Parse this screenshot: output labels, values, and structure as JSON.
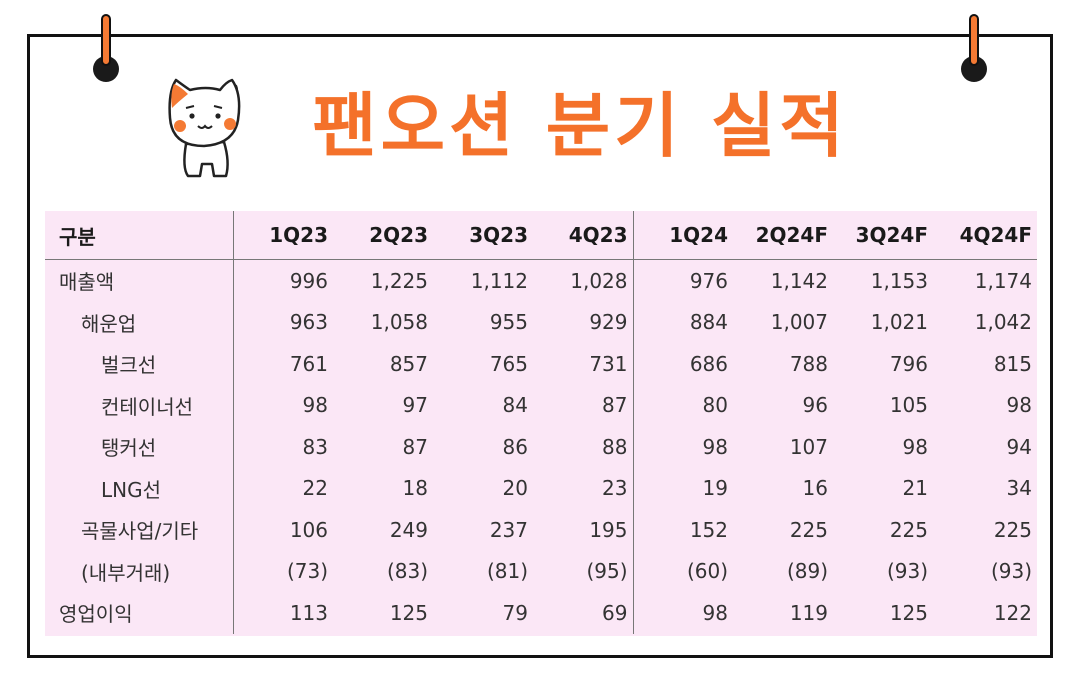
{
  "title": "팬오션 분기 실적",
  "table": {
    "headers": [
      "구분",
      "1Q23",
      "2Q23",
      "3Q23",
      "4Q23",
      "1Q24",
      "2Q24F",
      "3Q24F",
      "4Q24F"
    ],
    "rows": [
      {
        "label": "매출액",
        "level": 0,
        "values": [
          "996",
          "1,225",
          "1,112",
          "1,028",
          "976",
          "1,142",
          "1,153",
          "1,174"
        ]
      },
      {
        "label": "해운업",
        "level": 1,
        "values": [
          "963",
          "1,058",
          "955",
          "929",
          "884",
          "1,007",
          "1,021",
          "1,042"
        ]
      },
      {
        "label": "벌크선",
        "level": 2,
        "values": [
          "761",
          "857",
          "765",
          "731",
          "686",
          "788",
          "796",
          "815"
        ]
      },
      {
        "label": "컨테이너선",
        "level": 2,
        "values": [
          "98",
          "97",
          "84",
          "87",
          "80",
          "96",
          "105",
          "98"
        ]
      },
      {
        "label": "탱커선",
        "level": 2,
        "values": [
          "83",
          "87",
          "86",
          "88",
          "98",
          "107",
          "98",
          "94"
        ]
      },
      {
        "label": "LNG선",
        "level": 2,
        "values": [
          "22",
          "18",
          "20",
          "23",
          "19",
          "16",
          "21",
          "34"
        ]
      },
      {
        "label": "곡물사업/기타",
        "level": 1,
        "values": [
          "106",
          "249",
          "237",
          "195",
          "152",
          "225",
          "225",
          "225"
        ]
      },
      {
        "label": "(내부거래)",
        "level": 1,
        "values": [
          "(73)",
          "(83)",
          "(81)",
          "(95)",
          "(60)",
          "(89)",
          "(93)",
          "(93)"
        ]
      },
      {
        "label": "영업이익",
        "level": 0,
        "values": [
          "113",
          "125",
          "79",
          "69",
          "98",
          "119",
          "125",
          "122"
        ]
      }
    ]
  },
  "colors": {
    "title": "#f4712a",
    "pin": "#f47a34",
    "table_bg": "#fbe7f6",
    "cat_cheek": "#f47a34"
  }
}
